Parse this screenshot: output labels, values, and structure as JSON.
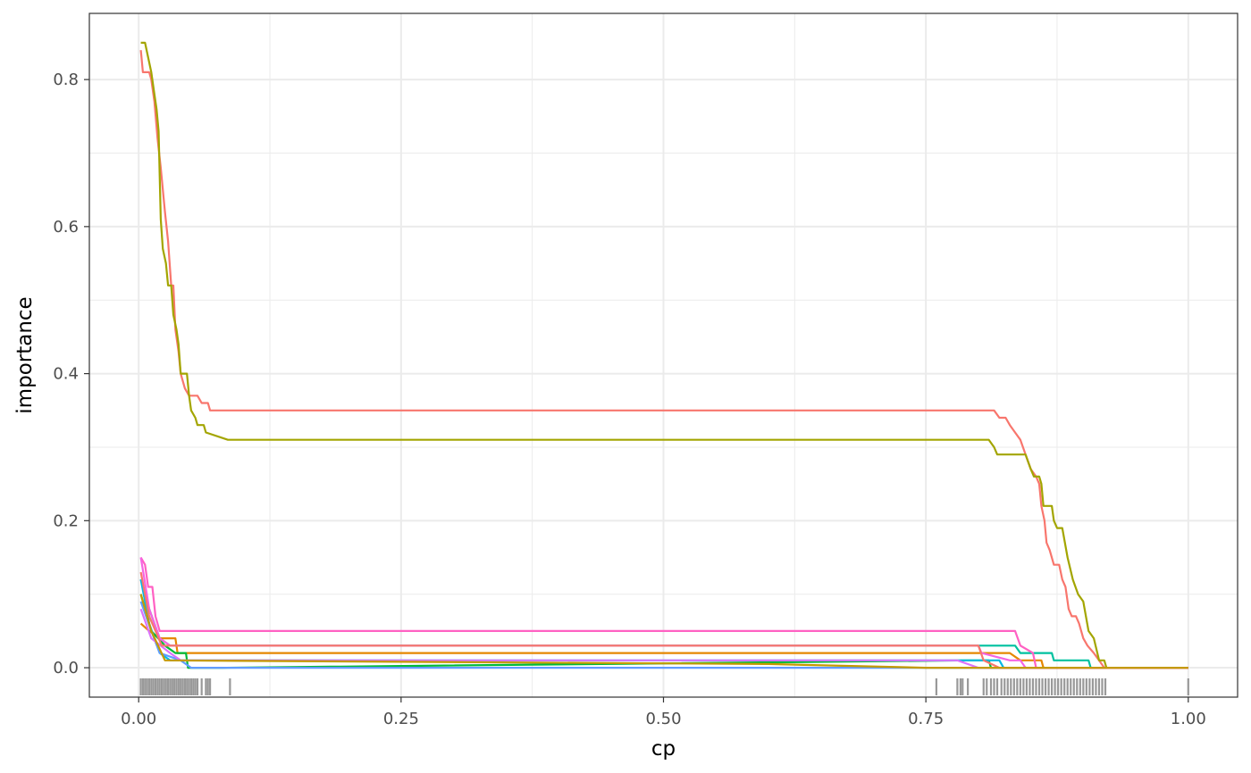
{
  "chart_data": {
    "type": "line",
    "title": "",
    "xlabel": "cp",
    "ylabel": "importance",
    "xlim": [
      -0.047,
      1.047
    ],
    "ylim": [
      -0.04,
      0.89
    ],
    "x_ticks": [
      0.0,
      0.25,
      0.5,
      0.75,
      1.0
    ],
    "x_tick_labels": [
      "0.00",
      "0.25",
      "0.50",
      "0.75",
      "1.00"
    ],
    "y_ticks": [
      0.0,
      0.2,
      0.4,
      0.6,
      0.8
    ],
    "y_tick_labels": [
      "0.0",
      "0.2",
      "0.4",
      "0.6",
      "0.8"
    ],
    "grid": true,
    "legend": "none",
    "series": [
      {
        "color": "#F8766D",
        "points": [
          [
            0.002,
            0.84
          ],
          [
            0.004,
            0.81
          ],
          [
            0.01,
            0.81
          ],
          [
            0.012,
            0.8
          ],
          [
            0.015,
            0.77
          ],
          [
            0.018,
            0.72
          ],
          [
            0.021,
            0.68
          ],
          [
            0.025,
            0.62
          ],
          [
            0.028,
            0.58
          ],
          [
            0.031,
            0.52
          ],
          [
            0.033,
            0.52
          ],
          [
            0.035,
            0.46
          ],
          [
            0.038,
            0.43
          ],
          [
            0.04,
            0.4
          ],
          [
            0.044,
            0.38
          ],
          [
            0.048,
            0.37
          ],
          [
            0.056,
            0.37
          ],
          [
            0.06,
            0.36
          ],
          [
            0.066,
            0.36
          ],
          [
            0.068,
            0.35
          ],
          [
            0.815,
            0.35
          ],
          [
            0.82,
            0.34
          ],
          [
            0.826,
            0.34
          ],
          [
            0.83,
            0.33
          ],
          [
            0.835,
            0.32
          ],
          [
            0.84,
            0.31
          ],
          [
            0.845,
            0.29
          ],
          [
            0.85,
            0.27
          ],
          [
            0.855,
            0.26
          ],
          [
            0.858,
            0.25
          ],
          [
            0.86,
            0.22
          ],
          [
            0.863,
            0.2
          ],
          [
            0.865,
            0.17
          ],
          [
            0.868,
            0.16
          ],
          [
            0.872,
            0.14
          ],
          [
            0.877,
            0.14
          ],
          [
            0.88,
            0.12
          ],
          [
            0.883,
            0.11
          ],
          [
            0.886,
            0.08
          ],
          [
            0.889,
            0.07
          ],
          [
            0.893,
            0.07
          ],
          [
            0.896,
            0.06
          ],
          [
            0.9,
            0.04
          ],
          [
            0.904,
            0.03
          ],
          [
            0.91,
            0.02
          ],
          [
            0.915,
            0.01
          ],
          [
            0.92,
            0.0
          ],
          [
            1.0,
            0.0
          ]
        ]
      },
      {
        "color": "#A3A500",
        "points": [
          [
            0.002,
            0.85
          ],
          [
            0.006,
            0.85
          ],
          [
            0.009,
            0.83
          ],
          [
            0.012,
            0.81
          ],
          [
            0.015,
            0.78
          ],
          [
            0.017,
            0.76
          ],
          [
            0.019,
            0.73
          ],
          [
            0.021,
            0.61
          ],
          [
            0.023,
            0.57
          ],
          [
            0.026,
            0.55
          ],
          [
            0.028,
            0.52
          ],
          [
            0.031,
            0.52
          ],
          [
            0.033,
            0.48
          ],
          [
            0.036,
            0.46
          ],
          [
            0.038,
            0.44
          ],
          [
            0.04,
            0.4
          ],
          [
            0.046,
            0.4
          ],
          [
            0.048,
            0.37
          ],
          [
            0.05,
            0.35
          ],
          [
            0.054,
            0.34
          ],
          [
            0.056,
            0.33
          ],
          [
            0.062,
            0.33
          ],
          [
            0.064,
            0.32
          ],
          [
            0.085,
            0.31
          ],
          [
            0.81,
            0.31
          ],
          [
            0.815,
            0.3
          ],
          [
            0.818,
            0.29
          ],
          [
            0.845,
            0.29
          ],
          [
            0.85,
            0.27
          ],
          [
            0.853,
            0.26
          ],
          [
            0.858,
            0.26
          ],
          [
            0.86,
            0.25
          ],
          [
            0.862,
            0.22
          ],
          [
            0.87,
            0.22
          ],
          [
            0.872,
            0.2
          ],
          [
            0.875,
            0.19
          ],
          [
            0.88,
            0.19
          ],
          [
            0.885,
            0.15
          ],
          [
            0.89,
            0.12
          ],
          [
            0.895,
            0.1
          ],
          [
            0.9,
            0.09
          ],
          [
            0.905,
            0.05
          ],
          [
            0.91,
            0.04
          ],
          [
            0.915,
            0.01
          ],
          [
            0.92,
            0.01
          ],
          [
            0.922,
            0.0
          ],
          [
            1.0,
            0.0
          ]
        ]
      },
      {
        "color": "#E58700",
        "points": [
          [
            0.002,
            0.06
          ],
          [
            0.01,
            0.05
          ],
          [
            0.02,
            0.04
          ],
          [
            0.035,
            0.04
          ],
          [
            0.037,
            0.02
          ],
          [
            0.83,
            0.02
          ],
          [
            0.84,
            0.01
          ],
          [
            0.86,
            0.01
          ],
          [
            0.862,
            0.0
          ],
          [
            1.0,
            0.0
          ]
        ]
      },
      {
        "color": "#00BA38",
        "points": [
          [
            0.002,
            0.1
          ],
          [
            0.012,
            0.05
          ],
          [
            0.025,
            0.03
          ],
          [
            0.035,
            0.02
          ],
          [
            0.045,
            0.02
          ],
          [
            0.047,
            0.0
          ],
          [
            0.08,
            0.0
          ],
          [
            0.79,
            0.01
          ],
          [
            0.81,
            0.01
          ],
          [
            0.812,
            0.0
          ],
          [
            1.0,
            0.0
          ]
        ]
      },
      {
        "color": "#00C19F",
        "points": [
          [
            0.002,
            0.12
          ],
          [
            0.01,
            0.08
          ],
          [
            0.02,
            0.04
          ],
          [
            0.03,
            0.03
          ],
          [
            0.79,
            0.03
          ],
          [
            0.8,
            0.03
          ],
          [
            0.805,
            0.03
          ],
          [
            0.835,
            0.03
          ],
          [
            0.84,
            0.02
          ],
          [
            0.87,
            0.02
          ],
          [
            0.872,
            0.01
          ],
          [
            0.905,
            0.01
          ],
          [
            0.907,
            0.0
          ],
          [
            1.0,
            0.0
          ]
        ]
      },
      {
        "color": "#00B9E3",
        "points": [
          [
            0.002,
            0.12
          ],
          [
            0.01,
            0.06
          ],
          [
            0.02,
            0.02
          ],
          [
            0.03,
            0.01
          ],
          [
            0.82,
            0.01
          ],
          [
            0.824,
            0.0
          ],
          [
            1.0,
            0.0
          ]
        ]
      },
      {
        "color": "#619CFF",
        "points": [
          [
            0.002,
            0.09
          ],
          [
            0.012,
            0.05
          ],
          [
            0.02,
            0.02
          ],
          [
            0.04,
            0.01
          ],
          [
            0.05,
            0.0
          ],
          [
            1.0,
            0.0
          ]
        ]
      },
      {
        "color": "#DB72FB",
        "points": [
          [
            0.002,
            0.08
          ],
          [
            0.012,
            0.04
          ],
          [
            0.03,
            0.02
          ],
          [
            0.04,
            0.01
          ],
          [
            0.78,
            0.01
          ],
          [
            0.8,
            0.0
          ],
          [
            1.0,
            0.0
          ]
        ]
      },
      {
        "color": "#FF61C3",
        "points": [
          [
            0.002,
            0.15
          ],
          [
            0.006,
            0.14
          ],
          [
            0.009,
            0.11
          ],
          [
            0.013,
            0.11
          ],
          [
            0.016,
            0.07
          ],
          [
            0.02,
            0.05
          ],
          [
            0.835,
            0.05
          ],
          [
            0.84,
            0.03
          ],
          [
            0.852,
            0.02
          ],
          [
            0.855,
            0.0
          ],
          [
            1.0,
            0.0
          ]
        ]
      },
      {
        "color": "#F564E3",
        "points": [
          [
            0.002,
            0.15
          ],
          [
            0.01,
            0.08
          ],
          [
            0.02,
            0.04
          ],
          [
            0.03,
            0.03
          ],
          [
            0.8,
            0.03
          ],
          [
            0.803,
            0.02
          ],
          [
            0.83,
            0.01
          ],
          [
            0.84,
            0.01
          ],
          [
            0.845,
            0.0
          ],
          [
            1.0,
            0.0
          ]
        ]
      },
      {
        "color": "#F8766D",
        "points": [
          [
            0.002,
            0.13
          ],
          [
            0.01,
            0.07
          ],
          [
            0.022,
            0.03
          ],
          [
            0.8,
            0.03
          ],
          [
            0.805,
            0.01
          ],
          [
            0.82,
            0.0
          ],
          [
            1.0,
            0.0
          ]
        ]
      },
      {
        "color": "#C49A00",
        "points": [
          [
            0.002,
            0.1
          ],
          [
            0.012,
            0.05
          ],
          [
            0.025,
            0.01
          ],
          [
            0.6,
            0.005
          ],
          [
            0.75,
            0.0
          ],
          [
            1.0,
            0.0
          ]
        ]
      }
    ],
    "rug_x": [
      0.002,
      0.004,
      0.006,
      0.008,
      0.01,
      0.012,
      0.014,
      0.016,
      0.018,
      0.02,
      0.022,
      0.024,
      0.026,
      0.028,
      0.03,
      0.032,
      0.034,
      0.036,
      0.038,
      0.04,
      0.042,
      0.044,
      0.046,
      0.048,
      0.05,
      0.052,
      0.054,
      0.056,
      0.06,
      0.064,
      0.066,
      0.068,
      0.087,
      0.76,
      0.78,
      0.783,
      0.785,
      0.79,
      0.805,
      0.808,
      0.812,
      0.815,
      0.818,
      0.822,
      0.825,
      0.828,
      0.831,
      0.834,
      0.837,
      0.84,
      0.843,
      0.846,
      0.849,
      0.852,
      0.855,
      0.858,
      0.861,
      0.864,
      0.867,
      0.87,
      0.873,
      0.876,
      0.879,
      0.882,
      0.885,
      0.888,
      0.891,
      0.894,
      0.897,
      0.9,
      0.903,
      0.906,
      0.909,
      0.912,
      0.915,
      0.918,
      0.921,
      1.0
    ]
  }
}
